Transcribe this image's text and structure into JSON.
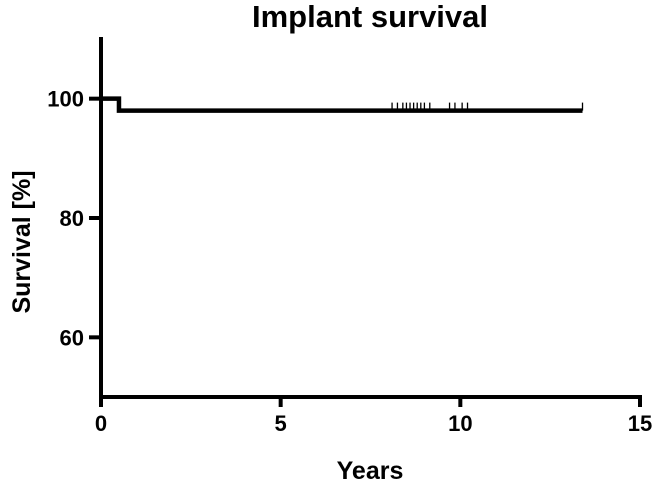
{
  "chart_data": {
    "type": "line",
    "subtype": "kaplan-meier step",
    "title": "Implant survival",
    "xlabel": "Years",
    "ylabel": "Survival [%]",
    "xlim": [
      0,
      15
    ],
    "ylim": [
      50,
      110
    ],
    "x_ticks": [
      0,
      5,
      10,
      15
    ],
    "x_tick_labels": [
      "0",
      "5",
      "10",
      "15"
    ],
    "y_ticks": [
      60,
      80,
      100
    ],
    "y_tick_labels": [
      "60",
      "80",
      "100"
    ],
    "grid": false,
    "legend": "none",
    "color": "#000000",
    "series": [
      {
        "steps": [
          {
            "x": 0,
            "y": 100
          },
          {
            "x": 0.5,
            "y": 98
          },
          {
            "x": 13.4,
            "y": 98
          }
        ],
        "censored": [
          8.1,
          8.25,
          8.4,
          8.5,
          8.6,
          8.7,
          8.8,
          8.9,
          9.0,
          9.15,
          9.7,
          9.85,
          10.05,
          10.2,
          13.4
        ]
      }
    ]
  }
}
